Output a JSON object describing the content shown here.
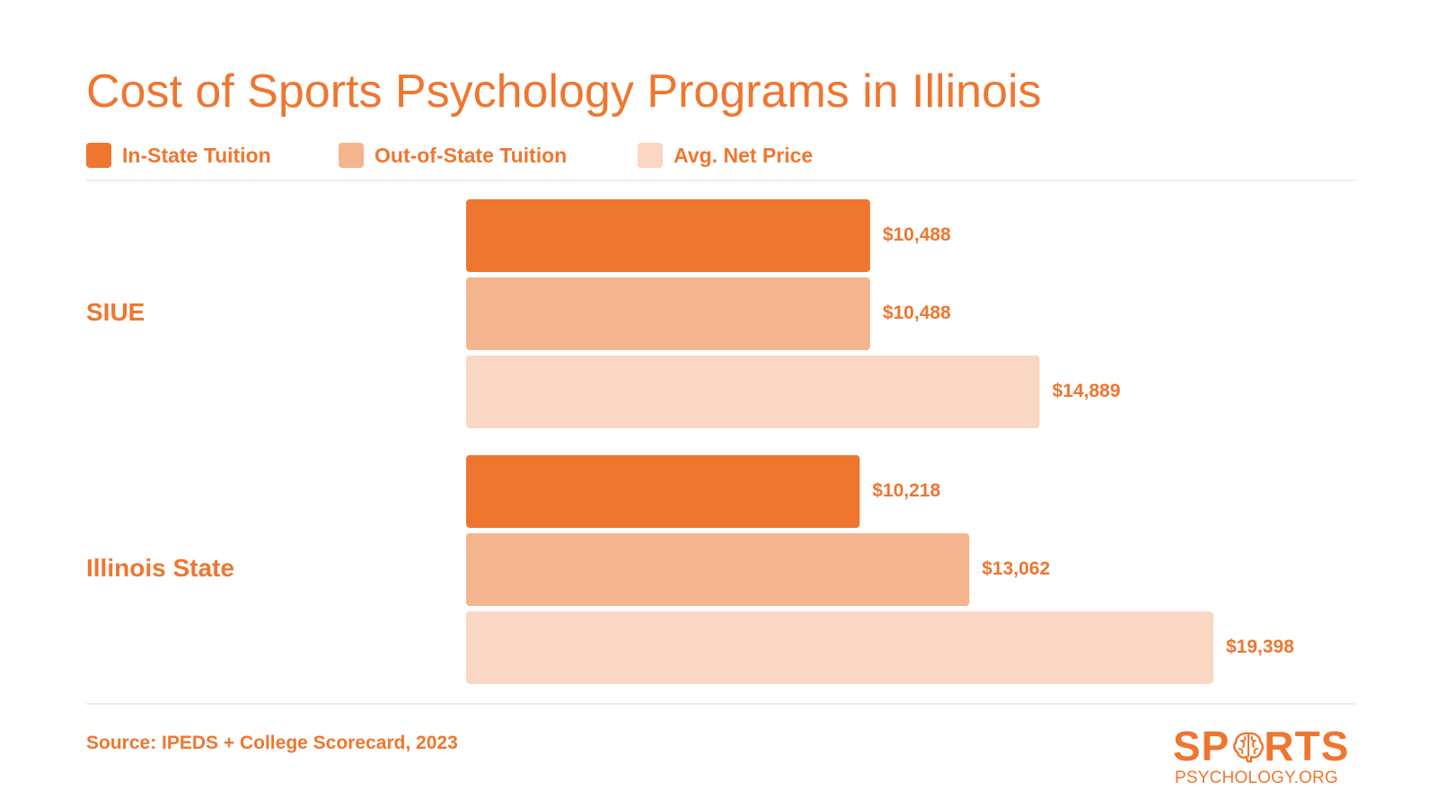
{
  "title": "Cost of Sports Psychology Programs in Illinois",
  "legend": [
    {
      "label": "In-State Tuition",
      "color": "#EF762F"
    },
    {
      "label": "Out-of-State Tuition",
      "color": "#F4B48D"
    },
    {
      "label": "Avg. Net Price",
      "color": "#F9D7C3"
    }
  ],
  "source": "Source: IPEDS + College Scorecard, 2023",
  "logo": {
    "word_left": "SP",
    "word_right": "RTS",
    "sub": "PSYCHOLOGY.ORG",
    "icon": "brain-icon"
  },
  "chart_data": {
    "type": "bar",
    "orientation": "horizontal",
    "title": "Cost of Sports Psychology Programs in Illinois",
    "categories": [
      "SIUE",
      "Illinois State"
    ],
    "series": [
      {
        "name": "In-State Tuition",
        "color": "#EF762F",
        "values": [
          10488,
          10218
        ],
        "labels": [
          "$10,488",
          "$10,218"
        ]
      },
      {
        "name": "Out-of-State Tuition",
        "color": "#F4B48D",
        "values": [
          10488,
          13062
        ],
        "labels": [
          "$10,488",
          "$13,062"
        ]
      },
      {
        "name": "Avg. Net Price",
        "color": "#F9D7C3",
        "values": [
          14889,
          19398
        ],
        "labels": [
          "$14,889",
          "$19,398"
        ]
      }
    ],
    "xlim": [
      0,
      19398
    ],
    "grid": false,
    "legend_position": "top-left",
    "value_labels": true,
    "label_color": "#EF762F"
  }
}
